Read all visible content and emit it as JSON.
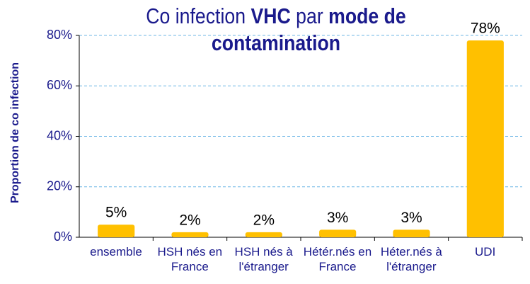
{
  "chart_data": {
    "type": "bar",
    "title": [
      "Co infection",
      "VHC",
      "par",
      "mode de contamination"
    ],
    "title_bold": [
      false,
      true,
      false,
      true
    ],
    "y_label": "Proportion de co infection",
    "categories": [
      "ensemble",
      "HSH nés en France",
      "HSH nés à l'étranger",
      "Hétér.nés en France",
      "Héter.nés à l'étranger",
      "UDI"
    ],
    "values": [
      5,
      2,
      2,
      3,
      3,
      78
    ],
    "value_labels": [
      "5%",
      "2%",
      "2%",
      "3%",
      "3%",
      "78%"
    ],
    "color": "#ffc000",
    "ylim": [
      0,
      80
    ],
    "yticks": [
      {
        "value": 0,
        "label": "0%"
      },
      {
        "value": 20,
        "label": "20%"
      },
      {
        "value": 40,
        "label": "40%"
      },
      {
        "value": 60,
        "label": "60%"
      },
      {
        "value": 80,
        "label": "80%"
      }
    ],
    "grid": true
  }
}
